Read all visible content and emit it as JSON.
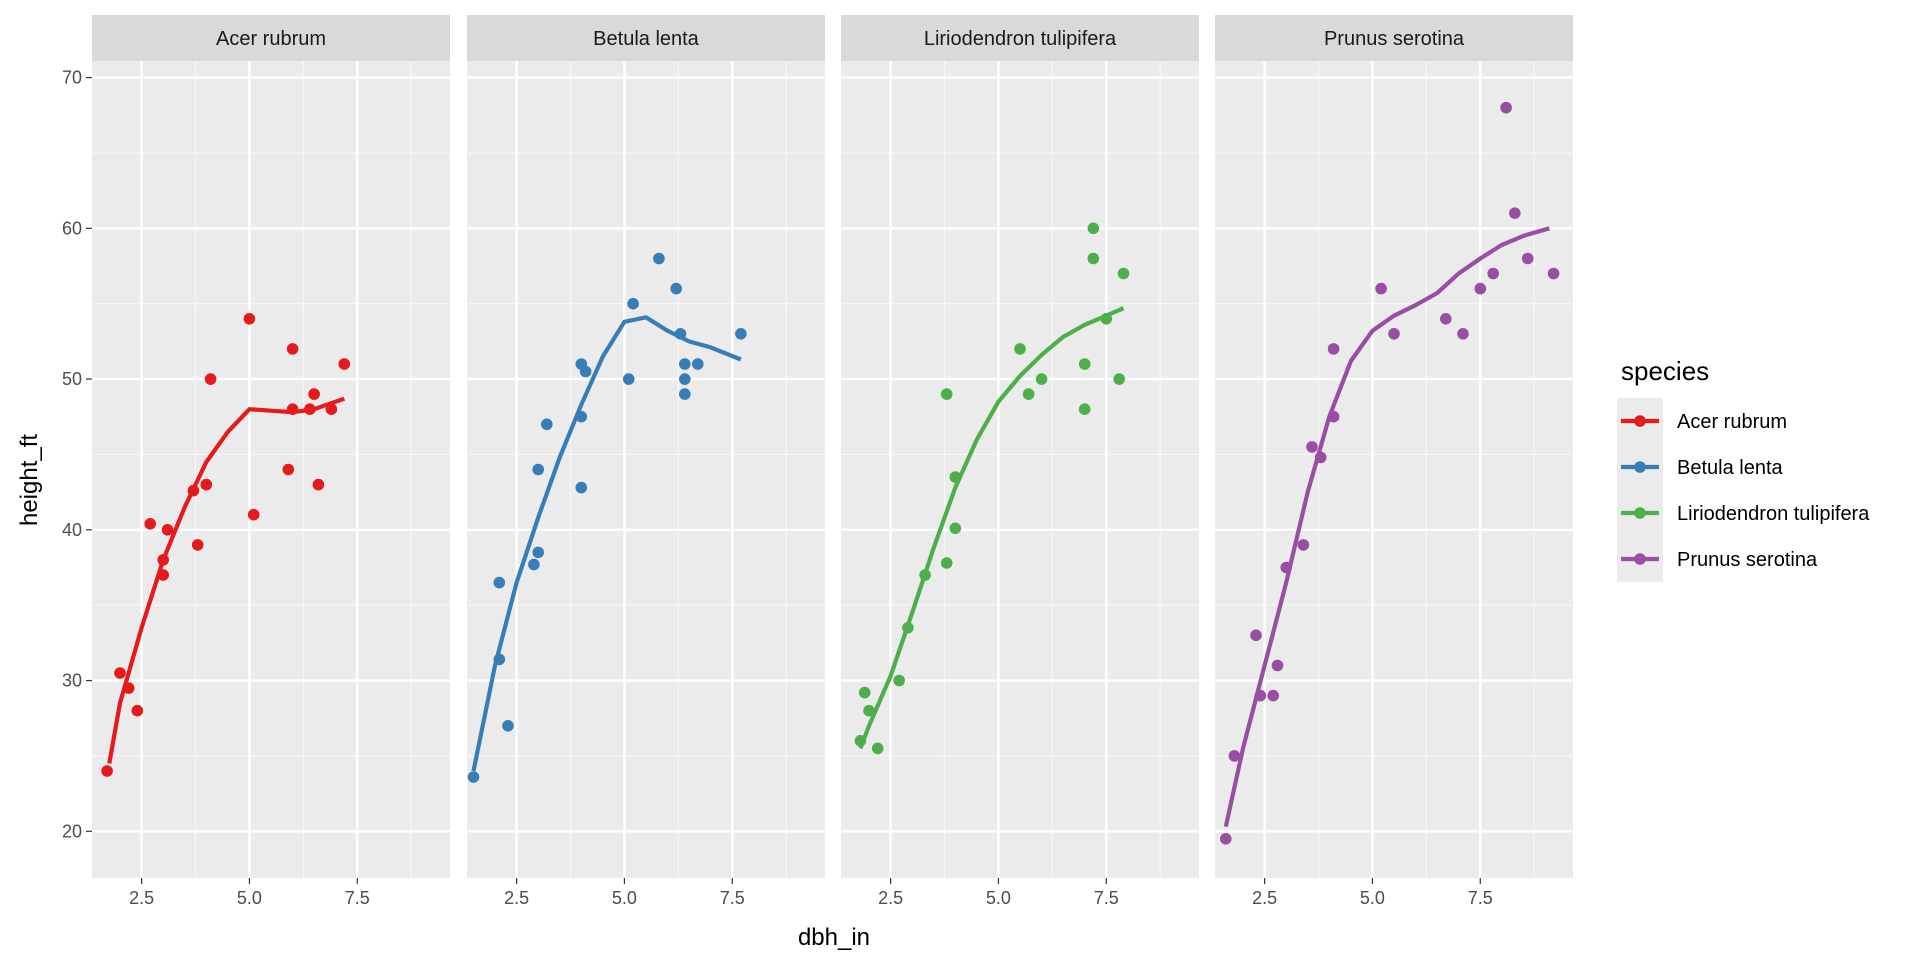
{
  "chart_data": {
    "type": "scatter",
    "facet_by": "species",
    "xlabel": "dbh_in",
    "ylabel": "height_ft",
    "xlim": [
      1.35,
      9.65
    ],
    "ylim": [
      16.9,
      71.1
    ],
    "x_ticks": [
      2.5,
      5.0,
      7.5
    ],
    "x_tick_labels": [
      "2.5",
      "5.0",
      "7.5"
    ],
    "y_ticks": [
      20,
      30,
      40,
      50,
      60,
      70
    ],
    "y_tick_labels": [
      "20",
      "30",
      "40",
      "50",
      "60",
      "70"
    ],
    "grid": true,
    "smooth": "loess",
    "legend": {
      "title": "species",
      "position": "right"
    },
    "series": [
      {
        "name": "Acer rubrum",
        "color": "#e41a1c",
        "x": [
          1.7,
          2.0,
          2.2,
          2.4,
          2.7,
          3.0,
          3.0,
          3.1,
          3.7,
          3.8,
          4.0,
          4.1,
          5.0,
          5.1,
          5.9,
          6.0,
          6.0,
          6.4,
          6.5,
          6.6,
          6.9,
          7.2
        ],
        "y": [
          24.0,
          30.5,
          29.5,
          28.0,
          40.4,
          38.0,
          37.0,
          40.0,
          42.6,
          39.0,
          43.0,
          50.0,
          54.0,
          41.0,
          44.0,
          52.0,
          48.0,
          48.0,
          49.0,
          43.0,
          48.0,
          51.0
        ],
        "smooth_x": [
          1.75,
          2.0,
          2.5,
          3.0,
          3.5,
          4.0,
          4.5,
          5.0,
          5.5,
          6.0,
          6.5,
          7.2
        ],
        "smooth_y": [
          24.5,
          28.5,
          33.5,
          38.0,
          41.5,
          44.5,
          46.5,
          48.0,
          47.9,
          47.8,
          48.0,
          48.7
        ]
      },
      {
        "name": "Betula lenta",
        "color": "#377eb8",
        "x": [
          1.5,
          2.1,
          2.1,
          2.3,
          2.9,
          3.0,
          3.0,
          3.2,
          4.0,
          4.0,
          4.0,
          4.1,
          5.1,
          5.2,
          5.8,
          6.2,
          6.3,
          6.4,
          6.4,
          6.4,
          6.7,
          7.7
        ],
        "y": [
          23.6,
          36.5,
          31.4,
          27.0,
          37.7,
          44.0,
          38.5,
          47.0,
          51.0,
          47.5,
          42.8,
          50.5,
          50.0,
          55.0,
          58.0,
          56.0,
          53.0,
          51.0,
          50.0,
          49.0,
          51.0,
          53.0
        ],
        "smooth_x": [
          1.5,
          2.0,
          2.5,
          3.0,
          3.5,
          4.0,
          4.5,
          5.0,
          5.5,
          6.0,
          6.5,
          7.0,
          7.7
        ],
        "smooth_y": [
          24.0,
          31.0,
          36.5,
          40.8,
          44.8,
          48.3,
          51.5,
          53.8,
          54.1,
          53.2,
          52.5,
          52.1,
          51.3
        ]
      },
      {
        "name": "Liriodendron tulipifera",
        "color": "#4daf4a",
        "x": [
          1.8,
          1.9,
          2.0,
          2.2,
          2.7,
          2.9,
          3.3,
          3.8,
          3.8,
          4.0,
          4.0,
          5.5,
          5.7,
          6.0,
          7.0,
          7.0,
          7.2,
          7.2,
          7.5,
          7.8,
          7.9
        ],
        "y": [
          26.0,
          29.2,
          28.0,
          25.5,
          30.0,
          33.5,
          37.0,
          49.0,
          37.8,
          43.5,
          40.1,
          52.0,
          49.0,
          50.0,
          51.0,
          48.0,
          60.0,
          58.0,
          54.0,
          50.0,
          57.0
        ],
        "smooth_x": [
          1.8,
          2.0,
          2.5,
          3.0,
          3.5,
          4.0,
          4.5,
          5.0,
          5.5,
          6.0,
          6.5,
          7.0,
          7.5,
          7.9
        ],
        "smooth_y": [
          25.5,
          27.0,
          30.3,
          34.5,
          38.8,
          42.8,
          46.0,
          48.5,
          50.2,
          51.6,
          52.8,
          53.6,
          54.2,
          54.7
        ]
      },
      {
        "name": "Prunus serotina",
        "color": "#984ea3",
        "x": [
          1.6,
          1.8,
          2.3,
          2.4,
          2.7,
          2.8,
          3.0,
          3.4,
          3.6,
          3.8,
          4.1,
          4.1,
          5.2,
          5.5,
          6.7,
          7.1,
          7.5,
          7.8,
          8.1,
          8.3,
          8.6,
          9.2
        ],
        "y": [
          19.5,
          25.0,
          33.0,
          29.0,
          29.0,
          31.0,
          37.5,
          39.0,
          45.5,
          44.8,
          52.0,
          47.5,
          56.0,
          53.0,
          54.0,
          53.0,
          56.0,
          57.0,
          68.0,
          61.0,
          58.0,
          57.0
        ],
        "smooth_x": [
          1.6,
          2.0,
          2.5,
          3.0,
          3.5,
          4.0,
          4.5,
          5.0,
          5.5,
          6.0,
          6.5,
          7.0,
          7.5,
          8.0,
          8.5,
          9.1
        ],
        "smooth_y": [
          20.3,
          25.5,
          31.0,
          36.5,
          42.5,
          47.5,
          51.2,
          53.2,
          54.2,
          54.9,
          55.7,
          57.0,
          58.0,
          58.9,
          59.5,
          60.0
        ]
      }
    ]
  }
}
